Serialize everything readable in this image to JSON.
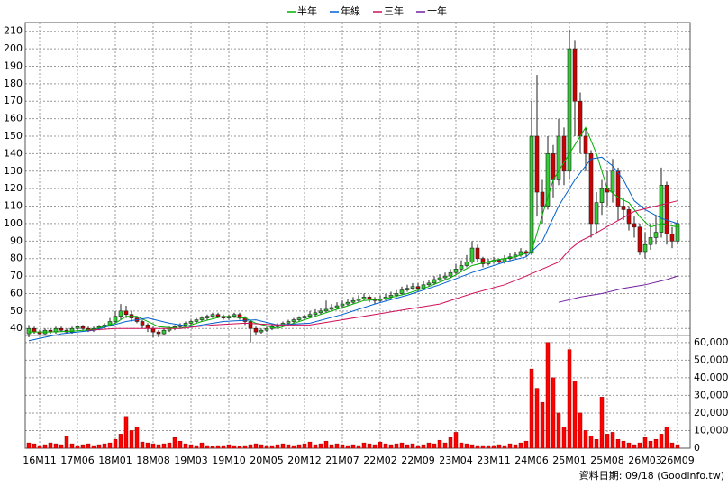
{
  "chart_data": {
    "type": "candlestick",
    "categories": [
      null,
      null,
      "16M11",
      null,
      null,
      null,
      null,
      null,
      null,
      "17M06",
      null,
      null,
      null,
      null,
      null,
      null,
      "18M01",
      null,
      null,
      null,
      null,
      null,
      null,
      "18M08",
      null,
      null,
      null,
      null,
      null,
      null,
      "19M03",
      null,
      null,
      null,
      null,
      null,
      null,
      "19M10",
      null,
      null,
      null,
      null,
      null,
      null,
      "20M05",
      null,
      null,
      null,
      null,
      null,
      null,
      "20M12",
      null,
      null,
      null,
      null,
      null,
      null,
      "21M07",
      null,
      null,
      null,
      null,
      null,
      null,
      "22M02",
      null,
      null,
      null,
      null,
      null,
      null,
      "22M09",
      null,
      null,
      null,
      null,
      null,
      null,
      "23M04",
      null,
      null,
      null,
      null,
      null,
      null,
      "23M11",
      null,
      null,
      null,
      null,
      null,
      null,
      "24M06",
      null,
      null,
      null,
      null,
      null,
      null,
      "25M01",
      null,
      null,
      null,
      null,
      null,
      null,
      "25M08",
      null,
      null,
      null,
      null,
      null,
      null,
      "26M03",
      null,
      null,
      null,
      null,
      null,
      "26M09"
    ],
    "candles": {
      "up_color": "#33cc33",
      "down_color": "#cc0000",
      "open": [
        37,
        40,
        38,
        37,
        39,
        38,
        40,
        39,
        38,
        40,
        41,
        40,
        39,
        40,
        41,
        42,
        44,
        47,
        50,
        48,
        46,
        44,
        42,
        40,
        38,
        37,
        39,
        40,
        41,
        42,
        43,
        44,
        45,
        46,
        47,
        48,
        47,
        46,
        47,
        48,
        46,
        44,
        40,
        38,
        39,
        40,
        41,
        42,
        43,
        44,
        45,
        46,
        47,
        48,
        49,
        50,
        51,
        52,
        53,
        54,
        55,
        56,
        57,
        58,
        57,
        56,
        57,
        58,
        59,
        60,
        62,
        63,
        64,
        63,
        65,
        66,
        68,
        69,
        70,
        72,
        74,
        76,
        78,
        86,
        80,
        77,
        78,
        79,
        78,
        80,
        81,
        82,
        84,
        83,
        150,
        118,
        110,
        140,
        125,
        150,
        130,
        200,
        170,
        150,
        140,
        100,
        112,
        120,
        118,
        130,
        110,
        108,
        100,
        98,
        84,
        88,
        92,
        95,
        122,
        94,
        90
      ],
      "high": [
        42,
        41,
        39,
        40,
        40,
        41,
        41,
        40,
        41,
        42,
        42,
        41,
        41,
        42,
        43,
        46,
        50,
        54,
        53,
        50,
        47,
        45,
        43,
        41,
        39,
        40,
        41,
        42,
        43,
        44,
        45,
        46,
        47,
        48,
        49,
        49,
        48,
        48,
        49,
        49,
        47,
        45,
        41,
        40,
        41,
        42,
        43,
        44,
        45,
        46,
        47,
        48,
        50,
        51,
        52,
        56,
        54,
        55,
        56,
        57,
        58,
        59,
        60,
        59,
        58,
        59,
        60,
        61,
        62,
        64,
        65,
        66,
        66,
        67,
        68,
        70,
        71,
        72,
        74,
        77,
        79,
        82,
        90,
        88,
        81,
        80,
        81,
        80,
        82,
        83,
        84,
        86,
        85,
        170,
        185,
        125,
        150,
        145,
        160,
        155,
        211,
        205,
        175,
        155,
        142,
        118,
        125,
        130,
        137,
        132,
        115,
        110,
        104,
        100,
        95,
        100,
        105,
        132,
        124,
        98,
        102
      ],
      "low": [
        35,
        37,
        36,
        36,
        37,
        37,
        38,
        37,
        37,
        39,
        39,
        38,
        38,
        39,
        40,
        41,
        43,
        45,
        46,
        44,
        43,
        40,
        38,
        35,
        35,
        36,
        38,
        39,
        40,
        41,
        42,
        43,
        44,
        45,
        46,
        46,
        45,
        45,
        46,
        45,
        42,
        32,
        36,
        37,
        38,
        39,
        40,
        41,
        42,
        43,
        44,
        45,
        46,
        47,
        48,
        49,
        50,
        51,
        52,
        53,
        54,
        55,
        56,
        55,
        54,
        55,
        56,
        57,
        58,
        59,
        61,
        62,
        61,
        62,
        64,
        65,
        67,
        68,
        69,
        71,
        73,
        75,
        77,
        78,
        75,
        76,
        77,
        77,
        77,
        79,
        80,
        81,
        81,
        82,
        104,
        100,
        108,
        115,
        122,
        122,
        125,
        150,
        140,
        130,
        92,
        95,
        105,
        110,
        112,
        102,
        102,
        96,
        92,
        82,
        80,
        85,
        88,
        92,
        88,
        86,
        88
      ],
      "close": [
        40,
        38,
        37,
        39,
        38,
        40,
        39,
        38,
        40,
        41,
        40,
        39,
        40,
        41,
        42,
        44,
        47,
        50,
        48,
        46,
        44,
        42,
        40,
        38,
        37,
        39,
        40,
        41,
        42,
        43,
        44,
        45,
        46,
        47,
        48,
        47,
        46,
        47,
        48,
        46,
        44,
        40,
        38,
        39,
        40,
        41,
        42,
        43,
        44,
        45,
        46,
        47,
        48,
        49,
        50,
        51,
        52,
        53,
        54,
        55,
        56,
        57,
        58,
        57,
        56,
        57,
        58,
        59,
        60,
        62,
        63,
        64,
        63,
        65,
        66,
        68,
        69,
        70,
        72,
        74,
        76,
        78,
        86,
        80,
        77,
        78,
        79,
        78,
        80,
        81,
        82,
        84,
        83,
        150,
        118,
        110,
        140,
        125,
        150,
        130,
        200,
        170,
        150,
        140,
        100,
        112,
        120,
        118,
        130,
        110,
        108,
        100,
        98,
        84,
        88,
        92,
        95,
        122,
        94,
        90,
        100
      ]
    },
    "ylim": [
      36,
      215
    ],
    "yticks": [
      40,
      50,
      60,
      70,
      80,
      90,
      100,
      110,
      120,
      130,
      140,
      150,
      160,
      170,
      180,
      190,
      200,
      210
    ],
    "grid": true,
    "series": [
      {
        "name": "半年",
        "color": "#00b000",
        "x": [
          0,
          4,
          8,
          12,
          16,
          18,
          20,
          24,
          28,
          32,
          36,
          40,
          42,
          46,
          50,
          54,
          58,
          62,
          66,
          70,
          74,
          78,
          82,
          86,
          90,
          93,
          95,
          97,
          99,
          101,
          103,
          105,
          107,
          109,
          111,
          113,
          115,
          117,
          120
        ],
        "values": [
          38,
          38,
          38.5,
          39.5,
          43,
          47,
          47,
          41,
          40,
          44,
          47,
          46,
          43,
          40,
          44,
          48,
          52,
          56,
          57,
          60,
          64,
          69,
          76,
          79,
          81,
          84,
          105,
          125,
          135,
          145,
          155,
          140,
          120,
          115,
          112,
          104,
          98,
          100,
          98
        ]
      },
      {
        "name": "年線",
        "color": "#0060d0",
        "x": [
          0,
          6,
          12,
          18,
          22,
          26,
          30,
          36,
          42,
          46,
          52,
          58,
          64,
          70,
          76,
          82,
          88,
          92,
          95,
          98,
          101,
          104,
          106,
          108,
          110,
          112,
          114,
          117,
          120
        ],
        "values": [
          33,
          37,
          39,
          44,
          46,
          43,
          41,
          44,
          45,
          42,
          43,
          48,
          54,
          59,
          65,
          72,
          78,
          81,
          90,
          110,
          125,
          137,
          138,
          133,
          125,
          113,
          108,
          103,
          100
        ]
      },
      {
        "name": "三年",
        "color": "#d0105a",
        "x": [
          11,
          16,
          22,
          28,
          34,
          40,
          46,
          52,
          58,
          64,
          70,
          76,
          82,
          88,
          92,
          95,
          98,
          100,
          102,
          104,
          108,
          112,
          116,
          120
        ],
        "values": [
          39,
          40,
          40,
          40,
          42,
          43,
          42,
          42,
          45,
          48,
          51,
          54,
          60,
          65,
          70,
          74,
          78,
          85,
          90,
          93,
          100,
          107,
          110,
          113
        ]
      },
      {
        "name": "十年",
        "color": "#7020a0",
        "x": [
          98,
          102,
          106,
          110,
          114,
          118,
          120
        ],
        "values": [
          55,
          58,
          60,
          63,
          65,
          68,
          70
        ]
      }
    ],
    "volume": {
      "color": "#ff0000",
      "values": [
        3000,
        2500,
        1500,
        2000,
        3000,
        2500,
        2000,
        7000,
        2500,
        1500,
        2000,
        2500,
        1500,
        2000,
        2500,
        3000,
        5000,
        8000,
        18000,
        10000,
        12000,
        3500,
        3000,
        2500,
        2000,
        2500,
        3000,
        6000,
        4000,
        2500,
        2000,
        1500,
        3000,
        1500,
        1000,
        1500,
        1500,
        2000,
        1500,
        1000,
        1500,
        2000,
        2500,
        2000,
        1500,
        1500,
        2000,
        2500,
        2000,
        1500,
        2000,
        2500,
        3500,
        2000,
        2500,
        4000,
        2000,
        2500,
        2000,
        1500,
        2000,
        1500,
        3000,
        2500,
        2000,
        3500,
        2500,
        2000,
        2500,
        3000,
        2000,
        2500,
        1500,
        2000,
        3000,
        2500,
        4500,
        3000,
        6000,
        9000,
        3000,
        2500,
        2000,
        1500,
        1500,
        1500,
        1500,
        2000,
        1500,
        2500,
        2000,
        3000,
        4000,
        45000,
        34000,
        26000,
        60000,
        40000,
        20000,
        12000,
        56000,
        38000,
        20000,
        10000,
        7000,
        5000,
        29000,
        8000,
        9000,
        5000,
        4000,
        3000,
        2000,
        3000,
        6000,
        4000,
        5000,
        8000,
        12000,
        3000,
        2000
      ],
      "ylim": [
        0,
        64000
      ],
      "yticks": [
        0,
        {
          "value": 10000,
          "label": "10,000"
        },
        {
          "value": 20000,
          "label": "20,000"
        },
        {
          "value": 30000,
          "label": "30,000"
        },
        {
          "value": 40000,
          "label": "40,000"
        },
        {
          "value": 50000,
          "label": "50,000"
        },
        {
          "value": 60000,
          "label": "60,000"
        }
      ]
    },
    "footer": "資料日期: 09/18 (Goodinfo.tw)"
  }
}
